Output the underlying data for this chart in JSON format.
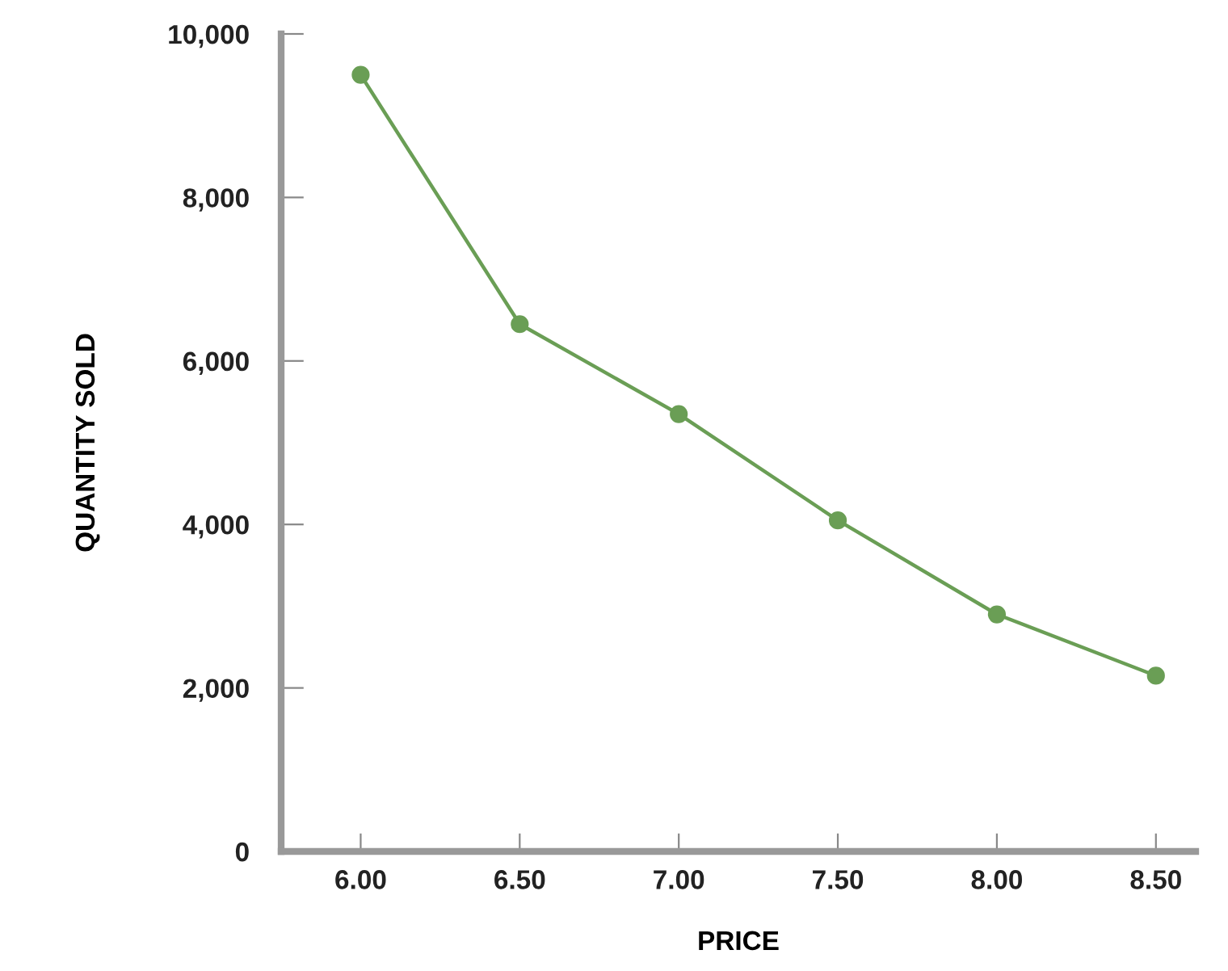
{
  "chart_data": {
    "type": "line",
    "xlabel": "PRICE",
    "ylabel": "QUANTITY SOLD",
    "x": [
      6.0,
      6.5,
      7.0,
      7.5,
      8.0,
      8.5
    ],
    "series": [
      {
        "color": "#6a9e55",
        "values": [
          9500,
          6450,
          5350,
          4050,
          2900,
          2150
        ]
      }
    ],
    "xlim": [
      5.75,
      8.625
    ],
    "xticks": [
      {
        "value": 6.0,
        "label": "6.00"
      },
      {
        "value": 6.5,
        "label": "6.50"
      },
      {
        "value": 7.0,
        "label": "7.00"
      },
      {
        "value": 7.5,
        "label": "7.50"
      },
      {
        "value": 8.0,
        "label": "8.00"
      },
      {
        "value": 8.5,
        "label": "8.50"
      }
    ],
    "ylim": [
      0,
      10000
    ],
    "yticks": [
      {
        "value": 0,
        "label": "0"
      },
      {
        "value": 2000,
        "label": "2,000"
      },
      {
        "value": 4000,
        "label": "4,000"
      },
      {
        "value": 6000,
        "label": "6,000"
      },
      {
        "value": 8000,
        "label": "8,000"
      },
      {
        "value": 10000,
        "label": "10,000"
      }
    ],
    "grid": false,
    "marker": "circle",
    "line_style": "solid"
  }
}
